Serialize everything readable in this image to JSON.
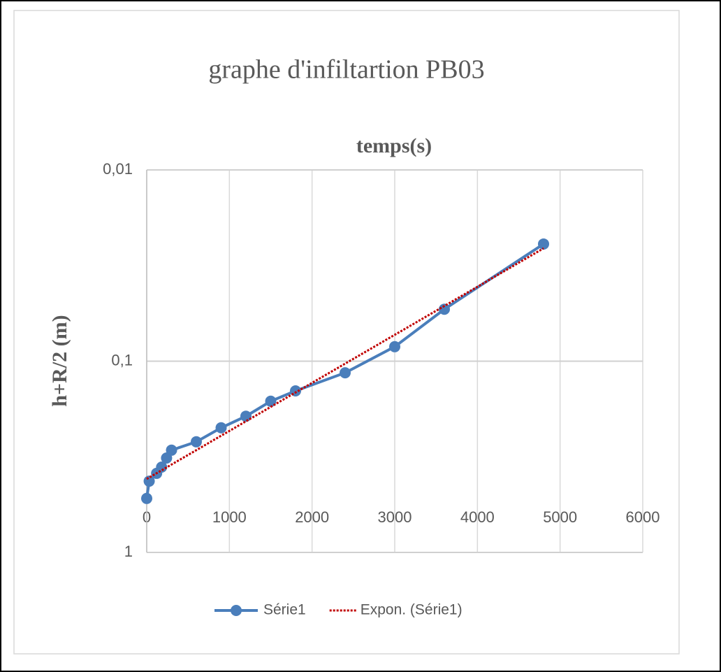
{
  "chart_data": {
    "type": "line",
    "title": "graphe d'infiltartion PB03",
    "x_label": "temps(s)",
    "y_label": "h+R/2 (m)",
    "xlim": [
      0,
      6000
    ],
    "xticks": [
      0,
      1000,
      2000,
      3000,
      4000,
      5000,
      6000
    ],
    "ylim": [
      0.01,
      1
    ],
    "y_log": true,
    "y_reversed": true,
    "yticks": [
      {
        "value": 0.01,
        "label": "0,01"
      },
      {
        "value": 0.1,
        "label": "0,1"
      },
      1
    ],
    "grid": true,
    "legend": "bottom",
    "series": [
      {
        "name": "Série1",
        "color": "#4a7ebb",
        "style": "solid-markers",
        "x": [
          0,
          30,
          120,
          180,
          240,
          300,
          600,
          900,
          1200,
          1500,
          1800,
          2400,
          3000,
          3600,
          4800
        ],
        "values": [
          0.522,
          0.424,
          0.386,
          0.358,
          0.321,
          0.292,
          0.264,
          0.223,
          0.194,
          0.162,
          0.143,
          0.115,
          0.084,
          0.0535,
          0.0244
        ]
      },
      {
        "name": "Expon. (Série1)",
        "color": "#c00000",
        "style": "dotted",
        "x": [
          0,
          4800
        ],
        "values": [
          0.413,
          0.0257
        ]
      }
    ]
  }
}
